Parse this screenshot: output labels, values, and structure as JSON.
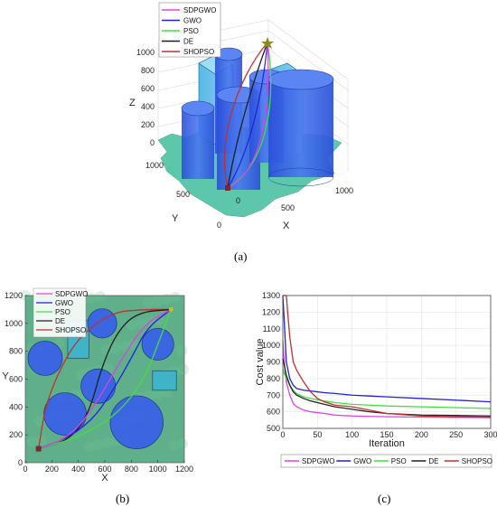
{
  "captions": {
    "a": "(a)",
    "b": "(b)",
    "c": "(c)"
  },
  "colors": {
    "SDPGWO": "#e040e0",
    "GWO": "#2020e0",
    "PSO": "#40e040",
    "DE": "#202020",
    "SHOPSO": "#c03030",
    "cylinder": "#3a63e6",
    "terrain": "#4cc2a4",
    "map_bg": "#5fb08a"
  },
  "chart_data": [
    {
      "id": "a",
      "type": "scatter",
      "title": "",
      "xlabel": "X",
      "ylabel": "Y",
      "zlabel": "Z",
      "xticks": [
        "0",
        "500",
        "1000"
      ],
      "yticks": [
        "0",
        "500",
        "1000"
      ],
      "zticks": [
        "0",
        "200",
        "400",
        "600",
        "800",
        "1000"
      ],
      "legend": [
        "SDPGWO",
        "GWO",
        "PSO",
        "DE",
        "SHOPSO"
      ],
      "legend_position": "top-left",
      "grid": true
    },
    {
      "id": "b",
      "type": "scatter",
      "title": "",
      "xlabel": "X",
      "ylabel": "Y",
      "xlim": [
        0,
        1200
      ],
      "ylim": [
        0,
        1200
      ],
      "xticks": [
        "0",
        "200",
        "400",
        "600",
        "800",
        "1000",
        "1200"
      ],
      "yticks": [
        "0",
        "200",
        "400",
        "600",
        "800",
        "1000",
        "1200"
      ],
      "legend": [
        "SDPGWO",
        "GWO",
        "PSO",
        "DE",
        "SHOPSO"
      ],
      "legend_position": "top-left",
      "start": [
        100,
        100
      ],
      "goal": [
        1100,
        1100
      ],
      "obstacles_circles": [
        {
          "cx": 150,
          "cy": 750,
          "r": 130
        },
        {
          "cx": 580,
          "cy": 1000,
          "r": 110
        },
        {
          "cx": 1000,
          "cy": 850,
          "r": 120
        },
        {
          "cx": 550,
          "cy": 550,
          "r": 130
        },
        {
          "cx": 300,
          "cy": 350,
          "r": 160
        },
        {
          "cx": 840,
          "cy": 290,
          "r": 200
        }
      ],
      "obstacles_rects": [
        {
          "x0": 320,
          "y0": 750,
          "x1": 480,
          "y1": 1020
        },
        {
          "x0": 960,
          "y0": 520,
          "x1": 1140,
          "y1": 660
        }
      ],
      "paths": {
        "SDPGWO": [
          [
            100,
            100
          ],
          [
            250,
            150
          ],
          [
            400,
            250
          ],
          [
            550,
            450
          ],
          [
            700,
            700
          ],
          [
            900,
            1000
          ],
          [
            1100,
            1100
          ]
        ],
        "GWO": [
          [
            100,
            100
          ],
          [
            300,
            170
          ],
          [
            500,
            300
          ],
          [
            650,
            500
          ],
          [
            800,
            750
          ],
          [
            920,
            970
          ],
          [
            1100,
            1100
          ]
        ],
        "PSO": [
          [
            100,
            100
          ],
          [
            400,
            180
          ],
          [
            700,
            350
          ],
          [
            900,
            600
          ],
          [
            1000,
            850
          ],
          [
            1100,
            1100
          ]
        ],
        "DE": [
          [
            100,
            100
          ],
          [
            330,
            160
          ],
          [
            480,
            350
          ],
          [
            580,
            700
          ],
          [
            700,
            950
          ],
          [
            850,
            1080
          ],
          [
            1100,
            1100
          ]
        ],
        "SHOPSO": [
          [
            100,
            100
          ],
          [
            150,
            400
          ],
          [
            250,
            650
          ],
          [
            400,
            900
          ],
          [
            650,
            1080
          ],
          [
            900,
            1100
          ],
          [
            1100,
            1100
          ]
        ]
      }
    },
    {
      "id": "c",
      "type": "line",
      "title": "",
      "xlabel": "Iteration",
      "ylabel": "Cost value",
      "xlim": [
        0,
        300
      ],
      "ylim": [
        500,
        1300
      ],
      "xticks": [
        "0",
        "50",
        "100",
        "150",
        "200",
        "250",
        "300"
      ],
      "yticks": [
        "500",
        "600",
        "700",
        "800",
        "900",
        "1000",
        "1100",
        "1200",
        "1300"
      ],
      "grid": true,
      "legend_position": "bottom",
      "x": [
        0,
        2,
        5,
        10,
        15,
        20,
        30,
        40,
        50,
        60,
        75,
        100,
        125,
        150,
        200,
        250,
        300
      ],
      "series": [
        {
          "name": "SDPGWO",
          "values": [
            1030,
            900,
            780,
            700,
            650,
            630,
            610,
            600,
            595,
            590,
            580,
            575,
            572,
            570,
            568,
            566,
            565
          ]
        },
        {
          "name": "GWO",
          "values": [
            1300,
            1150,
            900,
            800,
            760,
            740,
            730,
            725,
            720,
            715,
            710,
            700,
            695,
            690,
            680,
            670,
            660
          ]
        },
        {
          "name": "PSO",
          "values": [
            860,
            830,
            800,
            760,
            730,
            710,
            690,
            680,
            672,
            665,
            655,
            645,
            640,
            635,
            630,
            625,
            620
          ]
        },
        {
          "name": "DE",
          "values": [
            920,
            880,
            820,
            760,
            720,
            700,
            680,
            665,
            655,
            645,
            630,
            615,
            600,
            590,
            580,
            578,
            575
          ]
        },
        {
          "name": "SHOPSO",
          "values": [
            1300,
            1300,
            1300,
            1050,
            900,
            850,
            780,
            720,
            680,
            660,
            640,
            630,
            610,
            590,
            575,
            570,
            568
          ]
        }
      ]
    }
  ]
}
